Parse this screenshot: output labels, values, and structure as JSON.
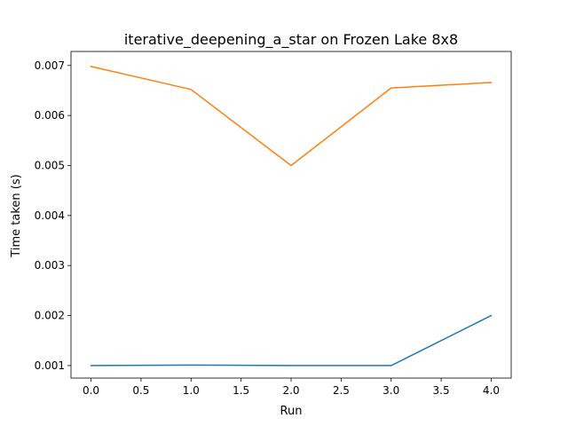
{
  "chart_data": {
    "type": "line",
    "title": "iterative_deepening_a_star on Frozen Lake 8x8",
    "xlabel": "Run",
    "ylabel": "Time taken (s)",
    "x": [
      0,
      1,
      2,
      3,
      4
    ],
    "series": [
      {
        "color": "#1f77b4",
        "values": [
          0.001,
          0.00101,
          0.001,
          0.001,
          0.002
        ]
      },
      {
        "color": "#ff7f0e",
        "values": [
          0.00698,
          0.00652,
          0.005,
          0.00655,
          0.00666
        ]
      }
    ],
    "xlim": [
      -0.2,
      4.2
    ],
    "ylim": [
      0.00075,
      0.00728
    ],
    "xticks": [
      0.0,
      0.5,
      1.0,
      1.5,
      2.0,
      2.5,
      3.0,
      3.5,
      4.0
    ],
    "xtick_labels": [
      "0.0",
      "0.5",
      "1.0",
      "1.5",
      "2.0",
      "2.5",
      "3.0",
      "3.5",
      "4.0"
    ],
    "yticks": [
      0.001,
      0.002,
      0.003,
      0.004,
      0.005,
      0.006,
      0.007
    ],
    "ytick_labels": [
      "0.001",
      "0.002",
      "0.003",
      "0.004",
      "0.005",
      "0.006",
      "0.007"
    ],
    "grid": false,
    "legend": "none"
  }
}
